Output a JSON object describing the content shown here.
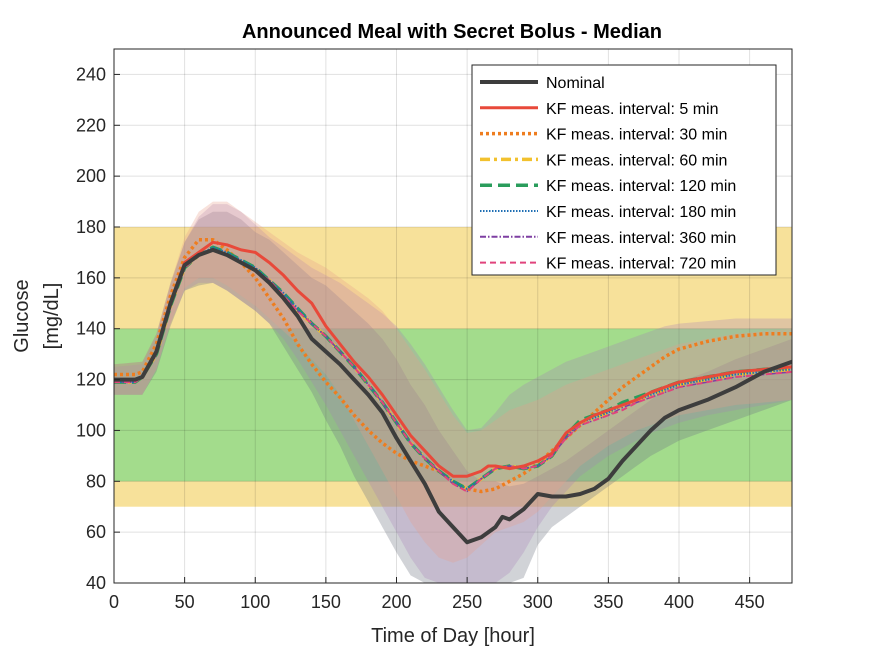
{
  "chart_data": {
    "type": "line",
    "title": "Announced Meal with Secret Bolus - Median",
    "xlabel": "Time of Day [hour]",
    "ylabel_lines": [
      "Glucose",
      "[mg/dL]"
    ],
    "xlim": [
      0,
      480
    ],
    "ylim": [
      40,
      250
    ],
    "xticks": [
      0,
      50,
      100,
      150,
      200,
      250,
      300,
      350,
      400,
      450
    ],
    "yticks": [
      40,
      60,
      80,
      100,
      120,
      140,
      160,
      180,
      200,
      220,
      240
    ],
    "grid": true,
    "legend_position": "top-right",
    "bands": [
      {
        "name": "hyper-range",
        "y0": 70,
        "y1": 180,
        "color": "#f7e19a"
      },
      {
        "name": "target-range",
        "y0": 80,
        "y1": 140,
        "color": "#a3dc8c"
      }
    ],
    "series": [
      {
        "name": "Nominal",
        "color": "#3d3d3d",
        "dash": "",
        "width": 4,
        "x": [
          0,
          15,
          20,
          30,
          40,
          50,
          60,
          70,
          80,
          90,
          100,
          110,
          120,
          130,
          140,
          150,
          160,
          170,
          180,
          190,
          200,
          210,
          220,
          230,
          240,
          250,
          255,
          260,
          270,
          275,
          280,
          290,
          300,
          310,
          320,
          330,
          340,
          350,
          360,
          370,
          380,
          390,
          400,
          420,
          440,
          460,
          480
        ],
        "y": [
          120,
          120,
          121,
          131,
          150,
          165,
          169,
          171,
          169,
          166,
          163,
          158,
          152,
          145,
          136,
          131,
          126,
          120,
          114,
          107,
          97,
          88,
          79,
          68,
          62,
          56,
          57,
          58,
          62,
          66,
          65,
          69,
          75,
          74,
          74,
          75,
          77,
          81,
          88,
          94,
          100,
          105,
          108,
          112,
          117,
          123,
          127
        ]
      },
      {
        "name": "KF meas. interval: 5 min",
        "color": "#e8493a",
        "dash": "",
        "width": 3,
        "x": [
          0,
          15,
          20,
          30,
          40,
          50,
          60,
          70,
          80,
          90,
          100,
          110,
          120,
          130,
          140,
          150,
          160,
          170,
          180,
          190,
          200,
          210,
          220,
          230,
          240,
          250,
          260,
          265,
          270,
          280,
          290,
          300,
          310,
          320,
          330,
          340,
          350,
          360,
          370,
          380,
          390,
          400,
          420,
          440,
          460,
          480
        ],
        "y": [
          120,
          120,
          121,
          131,
          150,
          166,
          170,
          174,
          173,
          171,
          170,
          166,
          161,
          155,
          150,
          141,
          134,
          127,
          121,
          114,
          106,
          98,
          92,
          86,
          82,
          82,
          84,
          86,
          86,
          85,
          86,
          88,
          91,
          99,
          103,
          106,
          108,
          110,
          112,
          115,
          117,
          119,
          121,
          123,
          124,
          125
        ]
      },
      {
        "name": "KF meas. interval: 30 min",
        "color": "#ee7d1f",
        "dash": "3,3",
        "width": 3.5,
        "x": [
          0,
          15,
          20,
          30,
          40,
          50,
          60,
          70,
          80,
          90,
          100,
          110,
          120,
          130,
          140,
          150,
          160,
          170,
          180,
          190,
          200,
          210,
          220,
          230,
          240,
          250,
          260,
          270,
          280,
          290,
          300,
          310,
          320,
          330,
          340,
          350,
          360,
          370,
          380,
          390,
          400,
          420,
          440,
          460,
          480
        ],
        "y": [
          122,
          122,
          123,
          134,
          153,
          168,
          175,
          175,
          171,
          166,
          160,
          152,
          144,
          134,
          126,
          119,
          113,
          106,
          100,
          95,
          91,
          88,
          86,
          84,
          80,
          77,
          76,
          77,
          80,
          83,
          87,
          92,
          97,
          102,
          107,
          112,
          117,
          121,
          125,
          129,
          132,
          135,
          137,
          138,
          138
        ]
      },
      {
        "name": "KF meas. interval: 60 min",
        "color": "#f2c12e",
        "dash": "10,4,3,4",
        "width": 3.5,
        "x": [
          0,
          15,
          20,
          30,
          40,
          50,
          60,
          70,
          80,
          90,
          100,
          110,
          120,
          130,
          140,
          150,
          160,
          170,
          180,
          190,
          200,
          210,
          220,
          230,
          240,
          250,
          260,
          270,
          280,
          290,
          300,
          310,
          320,
          330,
          340,
          350,
          360,
          370,
          380,
          390,
          400,
          420,
          440,
          460,
          480
        ],
        "y": [
          119,
          119,
          121,
          130,
          149,
          164,
          169,
          171,
          169,
          166,
          163,
          159,
          153,
          147,
          142,
          137,
          131,
          125,
          118,
          111,
          103,
          95,
          89,
          84,
          80,
          77,
          81,
          85,
          86,
          85,
          86,
          90,
          98,
          103,
          105,
          107,
          110,
          112,
          114,
          116,
          118,
          120,
          122,
          123,
          124
        ]
      },
      {
        "name": "KF meas. interval: 120 min",
        "color": "#2a9d5c",
        "dash": "12,6",
        "width": 3.5,
        "x": [
          0,
          15,
          20,
          30,
          40,
          50,
          60,
          70,
          80,
          90,
          100,
          110,
          120,
          130,
          140,
          150,
          160,
          170,
          180,
          190,
          200,
          210,
          220,
          230,
          240,
          250,
          260,
          270,
          280,
          290,
          300,
          310,
          320,
          330,
          340,
          350,
          360,
          370,
          380,
          390,
          400,
          420,
          440,
          460,
          480
        ],
        "y": [
          119,
          119,
          121,
          130,
          149,
          164,
          169,
          172,
          170,
          167,
          164,
          159,
          154,
          148,
          142,
          137,
          131,
          125,
          118,
          111,
          103,
          95,
          89,
          84,
          80,
          77,
          81,
          85,
          86,
          85,
          86,
          90,
          98,
          104,
          106,
          108,
          111,
          113,
          115,
          117,
          119,
          121,
          123,
          124,
          125
        ]
      },
      {
        "name": "KF meas. interval: 180 min",
        "color": "#1f6fb4",
        "dash": "1.5,1.5",
        "width": 2,
        "x": [
          0,
          15,
          20,
          30,
          40,
          50,
          60,
          70,
          80,
          90,
          100,
          110,
          120,
          130,
          140,
          150,
          160,
          170,
          180,
          190,
          200,
          210,
          220,
          230,
          240,
          250,
          260,
          270,
          280,
          290,
          300,
          310,
          320,
          330,
          340,
          350,
          360,
          370,
          380,
          390,
          400,
          420,
          440,
          460,
          480
        ],
        "y": [
          119,
          119,
          121,
          130,
          149,
          164,
          169,
          172,
          170,
          167,
          164,
          159,
          154,
          148,
          142,
          137,
          131,
          125,
          118,
          111,
          103,
          95,
          89,
          84,
          80,
          77,
          81,
          85,
          86,
          85,
          86,
          90,
          98,
          103,
          105,
          107,
          110,
          112,
          114,
          116,
          118,
          120,
          122,
          123,
          124
        ]
      },
      {
        "name": "KF meas. interval: 360 min",
        "color": "#7e3fa2",
        "dash": "6,2,1.5,2",
        "width": 1.5,
        "x": [
          0,
          15,
          20,
          30,
          40,
          50,
          60,
          70,
          80,
          90,
          100,
          110,
          120,
          130,
          140,
          150,
          160,
          170,
          180,
          190,
          200,
          210,
          220,
          230,
          240,
          250,
          260,
          270,
          280,
          290,
          300,
          310,
          320,
          330,
          340,
          350,
          360,
          370,
          380,
          390,
          400,
          420,
          440,
          460,
          480
        ],
        "y": [
          119,
          119,
          121,
          130,
          149,
          164,
          169,
          171,
          169,
          166,
          163,
          159,
          153,
          147,
          142,
          137,
          131,
          125,
          118,
          111,
          103,
          95,
          89,
          84,
          79,
          76,
          81,
          85,
          86,
          85,
          86,
          90,
          97,
          102,
          104,
          106,
          109,
          111,
          113,
          115,
          117,
          119,
          121,
          122,
          123
        ]
      },
      {
        "name": "KF meas. interval: 720 min",
        "color": "#e0447c",
        "dash": "6,4",
        "width": 2,
        "x": [
          0,
          15,
          20,
          30,
          40,
          50,
          60,
          70,
          80,
          90,
          100,
          110,
          120,
          130,
          140,
          150,
          160,
          170,
          180,
          190,
          200,
          210,
          220,
          230,
          240,
          250,
          260,
          270,
          280,
          290,
          300,
          310,
          320,
          330,
          340,
          350,
          360,
          370,
          380,
          390,
          400,
          420,
          440,
          460,
          480
        ],
        "y": [
          119,
          119,
          121,
          130,
          149,
          164,
          169,
          171,
          169,
          166,
          163,
          159,
          153,
          147,
          142,
          137,
          131,
          125,
          118,
          111,
          103,
          95,
          89,
          84,
          79,
          76,
          81,
          85,
          86,
          85,
          86,
          90,
          97,
          102,
          104,
          106,
          108,
          111,
          113,
          115,
          117,
          119,
          121,
          122,
          123
        ]
      }
    ],
    "spread_bands": [
      {
        "name": "nominal-spread",
        "color": "#6f7782",
        "opacity": 0.32,
        "x": [
          0,
          20,
          30,
          40,
          50,
          60,
          70,
          80,
          90,
          100,
          110,
          120,
          130,
          140,
          150,
          160,
          170,
          180,
          190,
          200,
          210,
          220,
          230,
          240,
          250,
          260,
          270,
          280,
          290,
          300,
          310,
          320,
          330,
          340,
          350,
          360,
          370,
          380,
          390,
          400,
          420,
          440,
          460,
          480
        ],
        "upper": [
          126,
          127,
          138,
          158,
          174,
          183,
          186,
          186,
          183,
          178,
          175,
          170,
          165,
          160,
          157,
          152,
          147,
          142,
          136,
          128,
          118,
          110,
          100,
          92,
          84,
          80,
          80,
          78,
          79,
          82,
          85,
          88,
          92,
          96,
          100,
          104,
          108,
          112,
          116,
          119,
          123,
          128,
          132,
          136
        ],
        "lower": [
          114,
          114,
          123,
          141,
          155,
          157,
          158,
          155,
          151,
          147,
          142,
          133,
          124,
          115,
          104,
          94,
          82,
          72,
          62,
          52,
          43,
          40,
          40,
          40,
          40,
          40,
          40,
          40,
          42,
          55,
          62,
          66,
          70,
          74,
          78,
          82,
          86,
          90,
          93,
          96,
          100,
          104,
          108,
          112
        ]
      },
      {
        "name": "kf-spread",
        "color": "#a77fb8",
        "opacity": 0.28,
        "x": [
          0,
          20,
          30,
          40,
          50,
          60,
          70,
          80,
          90,
          100,
          110,
          120,
          130,
          140,
          150,
          160,
          170,
          180,
          190,
          200,
          210,
          220,
          230,
          240,
          250,
          260,
          270,
          280,
          290,
          300,
          310,
          320,
          330,
          340,
          350,
          360,
          370,
          380,
          390,
          400,
          420,
          440,
          460,
          480
        ],
        "upper": [
          125,
          126,
          137,
          157,
          174,
          184,
          189,
          189,
          186,
          181,
          176,
          172,
          168,
          164,
          161,
          158,
          154,
          150,
          146,
          141,
          134,
          126,
          117,
          108,
          100,
          101,
          107,
          114,
          118,
          121,
          124,
          127,
          129,
          131,
          133,
          135,
          137,
          139,
          141,
          142,
          143,
          144,
          144,
          144
        ],
        "lower": [
          114,
          114,
          124,
          142,
          155,
          158,
          158,
          155,
          151,
          147,
          142,
          136,
          128,
          119,
          110,
          100,
          90,
          80,
          70,
          60,
          50,
          42,
          40,
          40,
          40,
          40,
          40,
          44,
          52,
          62,
          70,
          76,
          82,
          86,
          90,
          93,
          96,
          99,
          101,
          103,
          106,
          108,
          110,
          112
        ]
      },
      {
        "name": "kf-5min-spread",
        "color": "#e9a08a",
        "opacity": 0.3,
        "x": [
          0,
          20,
          30,
          40,
          50,
          60,
          70,
          80,
          90,
          100,
          110,
          120,
          130,
          140,
          150,
          160,
          170,
          180,
          190,
          200,
          210,
          220,
          230,
          240,
          250,
          260,
          270,
          280,
          290,
          300,
          310,
          320,
          330,
          340,
          350,
          360,
          370,
          380,
          390,
          400,
          420,
          440,
          460,
          480
        ],
        "upper": [
          126,
          127,
          138,
          158,
          176,
          186,
          190,
          190,
          186,
          182,
          178,
          174,
          170,
          167,
          164,
          160,
          156,
          152,
          147,
          140,
          132,
          124,
          115,
          106,
          99,
          100,
          104,
          108,
          110,
          112,
          115,
          118,
          120,
          122,
          124,
          126,
          128,
          130,
          132,
          134,
          136,
          138,
          139,
          140
        ],
        "lower": [
          114,
          114,
          124,
          142,
          156,
          160,
          160,
          157,
          153,
          149,
          144,
          139,
          134,
          128,
          122,
          114,
          104,
          94,
          84,
          74,
          64,
          56,
          50,
          48,
          50,
          55,
          60,
          62,
          64,
          68,
          74,
          80,
          86,
          90,
          94,
          97,
          100,
          102,
          104,
          106,
          108,
          110,
          111,
          112
        ]
      }
    ]
  }
}
